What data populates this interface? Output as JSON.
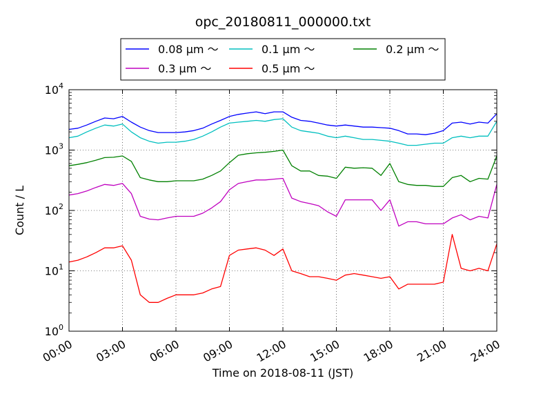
{
  "chart_data": {
    "type": "line",
    "title": "opc_20180811_000000.txt",
    "xlabel": "Time on 2018-08-11 (JST)",
    "ylabel": "Count / L",
    "x_unit": "hours",
    "xlim": [
      0,
      24
    ],
    "ylim": [
      1,
      10000
    ],
    "yscale": "log",
    "grid": true,
    "legend_position": "top-center",
    "x_ticks": [
      "00:00",
      "03:00",
      "06:00",
      "09:00",
      "12:00",
      "15:00",
      "18:00",
      "21:00",
      "24:00"
    ],
    "y_ticks": [
      {
        "base": "10",
        "exp": "0"
      },
      {
        "base": "10",
        "exp": "1"
      },
      {
        "base": "10",
        "exp": "2"
      },
      {
        "base": "10",
        "exp": "3"
      },
      {
        "base": "10",
        "exp": "4"
      }
    ],
    "x": [
      0,
      0.5,
      1,
      1.5,
      2,
      2.5,
      3,
      3.5,
      4,
      4.5,
      5,
      5.5,
      6,
      6.5,
      7,
      7.5,
      8,
      8.5,
      9,
      9.5,
      10,
      10.5,
      11,
      11.5,
      12,
      12.5,
      13,
      13.5,
      14,
      14.5,
      15,
      15.5,
      16,
      16.5,
      17,
      17.5,
      18,
      18.5,
      19,
      19.5,
      20,
      20.5,
      21,
      21.5,
      22,
      22.5,
      23,
      23.5,
      24
    ],
    "series": [
      {
        "name": "0.08 μm ～",
        "color": "#0000ff",
        "values": [
          2200,
          2300,
          2600,
          3000,
          3400,
          3300,
          3600,
          2900,
          2400,
          2100,
          1950,
          1950,
          1950,
          2000,
          2100,
          2300,
          2700,
          3100,
          3600,
          3900,
          4100,
          4300,
          4000,
          4300,
          4300,
          3500,
          3100,
          3000,
          2800,
          2600,
          2500,
          2600,
          2500,
          2400,
          2400,
          2350,
          2300,
          2100,
          1850,
          1850,
          1800,
          1900,
          2100,
          2800,
          2900,
          2700,
          2900,
          2800,
          4000
        ]
      },
      {
        "name": "0.1 μm ～",
        "color": "#00bfbf",
        "values": [
          1600,
          1700,
          2000,
          2300,
          2600,
          2500,
          2700,
          2000,
          1600,
          1400,
          1300,
          1350,
          1350,
          1400,
          1500,
          1700,
          2000,
          2400,
          2800,
          2900,
          3000,
          3100,
          3000,
          3200,
          3300,
          2400,
          2100,
          2000,
          1900,
          1700,
          1600,
          1700,
          1600,
          1500,
          1500,
          1450,
          1400,
          1300,
          1200,
          1200,
          1250,
          1300,
          1300,
          1600,
          1700,
          1600,
          1700,
          1700,
          3000
        ]
      },
      {
        "name": "0.2 μm ～",
        "color": "#008000",
        "values": [
          550,
          580,
          620,
          680,
          750,
          760,
          800,
          650,
          350,
          320,
          300,
          300,
          310,
          310,
          310,
          330,
          380,
          450,
          620,
          820,
          870,
          900,
          920,
          950,
          1000,
          550,
          450,
          450,
          380,
          370,
          340,
          520,
          500,
          510,
          500,
          380,
          600,
          300,
          270,
          260,
          260,
          250,
          250,
          350,
          380,
          300,
          340,
          330,
          800
        ]
      },
      {
        "name": "0.3 μm ～",
        "color": "#bf00bf",
        "values": [
          180,
          190,
          210,
          240,
          270,
          260,
          280,
          190,
          80,
          72,
          70,
          75,
          80,
          80,
          80,
          90,
          110,
          140,
          220,
          280,
          300,
          320,
          320,
          330,
          340,
          160,
          140,
          130,
          120,
          95,
          80,
          150,
          150,
          150,
          150,
          100,
          150,
          55,
          65,
          65,
          60,
          60,
          60,
          75,
          85,
          70,
          80,
          75,
          270
        ]
      },
      {
        "name": "0.5 μm ～",
        "color": "#ff0000",
        "values": [
          14,
          15,
          17,
          20,
          24,
          24,
          26,
          15,
          4,
          3,
          3,
          3.5,
          4,
          4,
          4,
          4.3,
          5,
          5.5,
          18,
          22,
          23,
          24,
          22,
          18,
          23,
          10,
          9,
          8,
          8,
          7.5,
          7,
          8.5,
          9,
          8.5,
          8,
          7.5,
          8,
          5,
          6,
          6,
          6,
          6,
          6.5,
          40,
          11,
          10,
          11,
          10,
          28
        ]
      }
    ]
  }
}
